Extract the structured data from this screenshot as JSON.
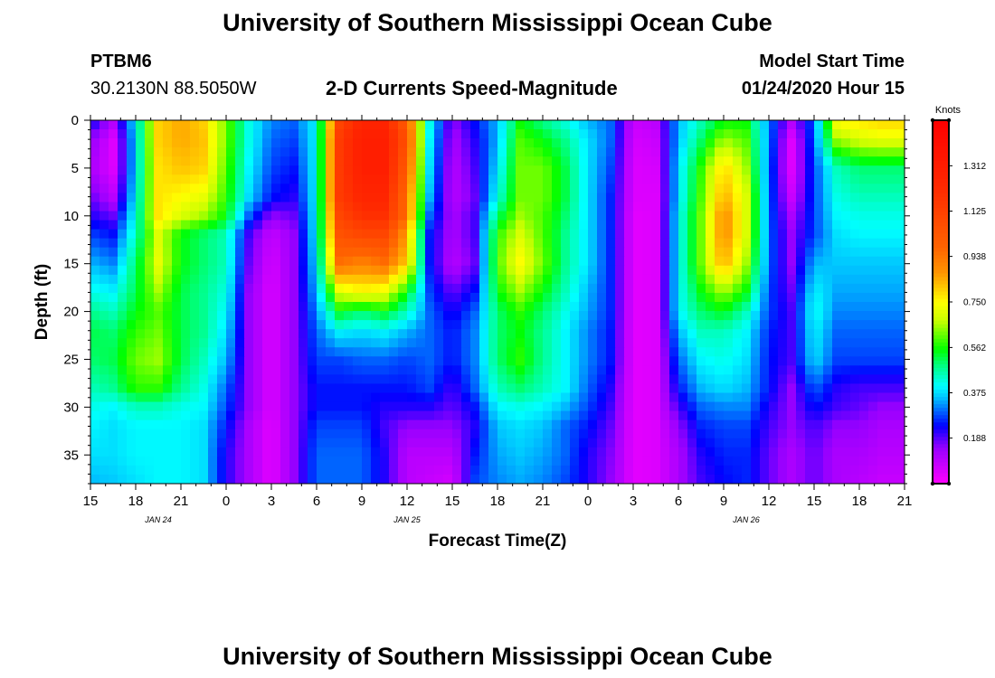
{
  "page": {
    "title_top": "University of Southern Mississippi Ocean Cube",
    "title_bottom": "University of Southern Mississippi Ocean Cube",
    "station_id": "PTBM6",
    "station_coords": "30.2130N 88.5050W",
    "product_title": "2-D Currents Speed-Magnitude",
    "model_start_label": "Model Start Time",
    "model_start_value": "01/24/2020 Hour 15"
  },
  "chart_data": {
    "type": "heatmap",
    "title": "2-D Currents Speed-Magnitude",
    "xlabel": "Forecast Time(Z)",
    "ylabel": "Depth (ft)",
    "x_ticks": [
      "15",
      "18",
      "21",
      "0",
      "3",
      "6",
      "9",
      "12",
      "15",
      "18",
      "21",
      "0",
      "3",
      "6",
      "9",
      "12",
      "15",
      "18",
      "21"
    ],
    "x_date_labels": [
      {
        "label": "JAN 24",
        "at_tick": 1.5
      },
      {
        "label": "JAN 25",
        "at_tick": 7
      },
      {
        "label": "JAN 26",
        "at_tick": 14.5
      }
    ],
    "y_ticks": [
      0,
      5,
      10,
      15,
      20,
      25,
      30,
      35
    ],
    "ylim": [
      0,
      38
    ],
    "y_inverted": true,
    "x_hours": [
      0,
      54
    ],
    "colorbar": {
      "label": "Knots",
      "range": [
        0.0,
        1.5
      ],
      "ticks": [
        "1.312",
        "1.125",
        "0.938",
        "0.750",
        "0.562",
        "0.375",
        "0.188"
      ],
      "tick_values": [
        1.312,
        1.125,
        0.938,
        0.75,
        0.562,
        0.375,
        0.188
      ]
    },
    "grid": {
      "hours": [
        0,
        1.5,
        3,
        4.5,
        6,
        7.5,
        9,
        10.5,
        12,
        13.5,
        15,
        16.5,
        18,
        19.5,
        21,
        22.5,
        24,
        25.5,
        27,
        28.5,
        30,
        31.5,
        33,
        34.5,
        36,
        37.5,
        39,
        40.5,
        42,
        43.5,
        45,
        46.5,
        48,
        49.5,
        51,
        52.5,
        54
      ],
      "depths": [
        0,
        2,
        5,
        8,
        10,
        12,
        15,
        18,
        20,
        22,
        25,
        28,
        30,
        32,
        35,
        38
      ],
      "speed_knots": [
        [
          0.25,
          0.12,
          0.4,
          0.8,
          0.85,
          0.8,
          0.62,
          0.42,
          0.32,
          0.3,
          0.4,
          1.1,
          1.25,
          1.25,
          1.0,
          0.42,
          0.15,
          0.25,
          0.35,
          0.55,
          0.48,
          0.42,
          0.35,
          0.3,
          0.08,
          0.1,
          0.35,
          0.45,
          0.55,
          0.55,
          0.32,
          0.12,
          0.3,
          0.75,
          0.78,
          0.8,
          0.8
        ],
        [
          0.15,
          0.05,
          0.38,
          0.8,
          0.85,
          0.82,
          0.62,
          0.42,
          0.3,
          0.28,
          0.4,
          1.15,
          1.3,
          1.3,
          1.05,
          0.4,
          0.12,
          0.22,
          0.35,
          0.6,
          0.55,
          0.48,
          0.38,
          0.3,
          0.06,
          0.08,
          0.35,
          0.5,
          0.65,
          0.6,
          0.32,
          0.05,
          0.3,
          0.65,
          0.7,
          0.72,
          0.72
        ],
        [
          0.12,
          0.05,
          0.38,
          0.78,
          0.82,
          0.8,
          0.6,
          0.4,
          0.28,
          0.25,
          0.4,
          1.15,
          1.3,
          1.3,
          1.0,
          0.38,
          0.1,
          0.2,
          0.38,
          0.62,
          0.62,
          0.52,
          0.38,
          0.28,
          0.05,
          0.06,
          0.38,
          0.58,
          0.8,
          0.65,
          0.3,
          0.05,
          0.28,
          0.45,
          0.5,
          0.5,
          0.5
        ],
        [
          0.18,
          0.1,
          0.4,
          0.78,
          0.75,
          0.72,
          0.58,
          0.38,
          0.25,
          0.22,
          0.4,
          1.15,
          1.25,
          1.25,
          0.95,
          0.35,
          0.1,
          0.18,
          0.42,
          0.62,
          0.62,
          0.52,
          0.38,
          0.26,
          0.05,
          0.05,
          0.38,
          0.6,
          0.85,
          0.7,
          0.3,
          0.08,
          0.28,
          0.42,
          0.45,
          0.45,
          0.45
        ],
        [
          0.22,
          0.18,
          0.42,
          0.78,
          0.7,
          0.65,
          0.55,
          0.3,
          0.15,
          0.18,
          0.4,
          1.1,
          1.2,
          1.2,
          0.95,
          0.3,
          0.12,
          0.2,
          0.5,
          0.65,
          0.6,
          0.5,
          0.38,
          0.26,
          0.04,
          0.05,
          0.4,
          0.62,
          0.9,
          0.7,
          0.3,
          0.12,
          0.28,
          0.4,
          0.42,
          0.42,
          0.42
        ],
        [
          0.28,
          0.25,
          0.45,
          0.7,
          0.55,
          0.5,
          0.45,
          0.2,
          0.08,
          0.15,
          0.4,
          1.05,
          1.1,
          1.1,
          0.85,
          0.25,
          0.12,
          0.2,
          0.58,
          0.7,
          0.6,
          0.48,
          0.38,
          0.26,
          0.04,
          0.05,
          0.4,
          0.62,
          0.9,
          0.7,
          0.3,
          0.15,
          0.28,
          0.38,
          0.4,
          0.4,
          0.4
        ],
        [
          0.35,
          0.32,
          0.5,
          0.72,
          0.55,
          0.5,
          0.45,
          0.18,
          0.06,
          0.15,
          0.38,
          0.95,
          0.9,
          0.95,
          0.8,
          0.25,
          0.1,
          0.18,
          0.6,
          0.75,
          0.62,
          0.48,
          0.38,
          0.26,
          0.04,
          0.05,
          0.4,
          0.62,
          0.85,
          0.65,
          0.3,
          0.15,
          0.35,
          0.36,
          0.36,
          0.36,
          0.36
        ],
        [
          0.42,
          0.4,
          0.52,
          0.65,
          0.52,
          0.48,
          0.42,
          0.15,
          0.05,
          0.15,
          0.35,
          0.7,
          0.75,
          0.72,
          0.55,
          0.28,
          0.18,
          0.25,
          0.55,
          0.65,
          0.55,
          0.45,
          0.35,
          0.26,
          0.04,
          0.05,
          0.4,
          0.55,
          0.65,
          0.55,
          0.28,
          0.18,
          0.4,
          0.34,
          0.34,
          0.34,
          0.34
        ],
        [
          0.48,
          0.45,
          0.55,
          0.6,
          0.52,
          0.48,
          0.4,
          0.15,
          0.05,
          0.15,
          0.32,
          0.55,
          0.5,
          0.55,
          0.45,
          0.3,
          0.22,
          0.3,
          0.5,
          0.58,
          0.5,
          0.42,
          0.34,
          0.26,
          0.04,
          0.05,
          0.4,
          0.5,
          0.55,
          0.45,
          0.28,
          0.2,
          0.42,
          0.32,
          0.32,
          0.32,
          0.32
        ],
        [
          0.52,
          0.5,
          0.58,
          0.62,
          0.52,
          0.48,
          0.38,
          0.15,
          0.05,
          0.15,
          0.3,
          0.4,
          0.38,
          0.4,
          0.35,
          0.3,
          0.25,
          0.32,
          0.5,
          0.55,
          0.48,
          0.4,
          0.32,
          0.25,
          0.04,
          0.05,
          0.35,
          0.45,
          0.45,
          0.4,
          0.26,
          0.2,
          0.4,
          0.3,
          0.3,
          0.3,
          0.3
        ],
        [
          0.5,
          0.52,
          0.62,
          0.65,
          0.52,
          0.45,
          0.35,
          0.15,
          0.05,
          0.15,
          0.28,
          0.28,
          0.3,
          0.3,
          0.28,
          0.3,
          0.25,
          0.32,
          0.5,
          0.58,
          0.48,
          0.4,
          0.32,
          0.25,
          0.04,
          0.05,
          0.3,
          0.4,
          0.42,
          0.38,
          0.25,
          0.2,
          0.38,
          0.28,
          0.28,
          0.28,
          0.28
        ],
        [
          0.45,
          0.48,
          0.58,
          0.58,
          0.48,
          0.42,
          0.3,
          0.15,
          0.05,
          0.15,
          0.25,
          0.25,
          0.25,
          0.25,
          0.25,
          0.28,
          0.2,
          0.3,
          0.45,
          0.5,
          0.45,
          0.4,
          0.3,
          0.22,
          0.04,
          0.05,
          0.25,
          0.35,
          0.38,
          0.35,
          0.25,
          0.15,
          0.3,
          0.22,
          0.2,
          0.2,
          0.2
        ],
        [
          0.42,
          0.4,
          0.45,
          0.45,
          0.42,
          0.4,
          0.28,
          0.15,
          0.05,
          0.15,
          0.25,
          0.25,
          0.25,
          0.22,
          0.22,
          0.22,
          0.18,
          0.25,
          0.4,
          0.42,
          0.4,
          0.35,
          0.28,
          0.2,
          0.04,
          0.05,
          0.2,
          0.3,
          0.32,
          0.32,
          0.22,
          0.15,
          0.25,
          0.2,
          0.18,
          0.15,
          0.15
        ],
        [
          0.4,
          0.38,
          0.4,
          0.4,
          0.4,
          0.38,
          0.25,
          0.12,
          0.04,
          0.15,
          0.28,
          0.28,
          0.28,
          0.2,
          0.15,
          0.15,
          0.15,
          0.22,
          0.36,
          0.38,
          0.36,
          0.3,
          0.25,
          0.18,
          0.04,
          0.05,
          0.15,
          0.26,
          0.28,
          0.28,
          0.2,
          0.15,
          0.2,
          0.15,
          0.15,
          0.12,
          0.12
        ],
        [
          0.38,
          0.38,
          0.4,
          0.4,
          0.4,
          0.38,
          0.22,
          0.12,
          0.04,
          0.15,
          0.3,
          0.3,
          0.3,
          0.22,
          0.1,
          0.1,
          0.1,
          0.25,
          0.34,
          0.36,
          0.34,
          0.3,
          0.22,
          0.16,
          0.04,
          0.05,
          0.12,
          0.22,
          0.26,
          0.26,
          0.18,
          0.12,
          0.18,
          0.12,
          0.12,
          0.1,
          0.1
        ],
        [
          0.35,
          0.36,
          0.38,
          0.4,
          0.4,
          0.38,
          0.22,
          0.12,
          0.04,
          0.15,
          0.3,
          0.3,
          0.3,
          0.22,
          0.1,
          0.08,
          0.06,
          0.28,
          0.32,
          0.34,
          0.32,
          0.28,
          0.22,
          0.15,
          0.04,
          0.05,
          0.12,
          0.2,
          0.24,
          0.26,
          0.18,
          0.12,
          0.18,
          0.12,
          0.1,
          0.08,
          0.08
        ]
      ]
    }
  }
}
